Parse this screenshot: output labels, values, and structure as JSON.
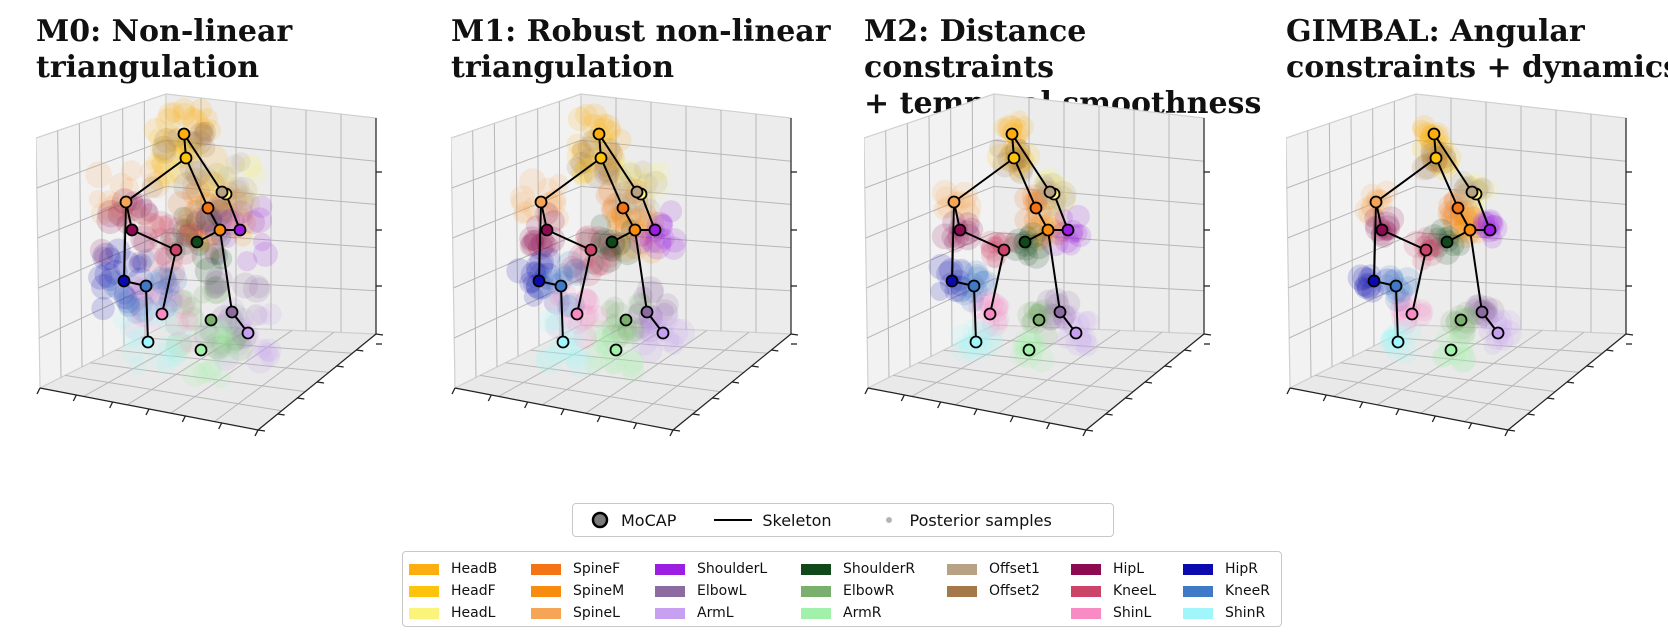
{
  "panels": [
    {
      "title": "M0: Non-linear\ntriangulation",
      "spread": 1.0
    },
    {
      "title": "M1: Robust non-linear\ntriangulation",
      "spread": 0.7
    },
    {
      "title": "M2: Distance constraints\n+ temporal smoothness",
      "spread": 0.4
    },
    {
      "title": "GIMBAL: Angular\nconstraints + dynamics",
      "spread": 0.35
    }
  ],
  "legend_markers": [
    {
      "label": "MoCAP",
      "icon": "mocap-marker-icon"
    },
    {
      "label": "Skeleton",
      "icon": "skeleton-line-icon"
    },
    {
      "label": "Posterior samples",
      "icon": "sample-dot-icon"
    }
  ],
  "keypoint_legend": [
    [
      {
        "label": "HeadB",
        "color": "#fcad0f"
      },
      {
        "label": "HeadF",
        "color": "#fcc40c"
      },
      {
        "label": "HeadL",
        "color": "#fbf47a"
      }
    ],
    [
      {
        "label": "SpineF",
        "color": "#f47415"
      },
      {
        "label": "SpineM",
        "color": "#f88c0f"
      },
      {
        "label": "SpineL",
        "color": "#f6a556"
      }
    ],
    [
      {
        "label": "ShoulderL",
        "color": "#9b1ee2"
      },
      {
        "label": "ElbowL",
        "color": "#8c6ba0"
      },
      {
        "label": "ArmL",
        "color": "#c7a0f2"
      }
    ],
    [
      {
        "label": "ShoulderR",
        "color": "#10481a"
      },
      {
        "label": "ElbowR",
        "color": "#7aaf6d"
      },
      {
        "label": "ArmR",
        "color": "#a1f1aa"
      }
    ],
    [
      {
        "label": "Offset1",
        "color": "#b7a286"
      },
      {
        "label": "Offset2",
        "color": "#a47849"
      }
    ],
    [
      {
        "label": "HipL",
        "color": "#8d0c51"
      },
      {
        "label": "KneeL",
        "color": "#cd4469"
      },
      {
        "label": "ShinL",
        "color": "#f98bc4"
      }
    ],
    [
      {
        "label": "HipR",
        "color": "#0a0aaf"
      },
      {
        "label": "KneeR",
        "color": "#4079c7"
      },
      {
        "label": "ShinR",
        "color": "#a1f6fb"
      }
    ]
  ],
  "chart_data": {
    "type": "scatter",
    "grid": true,
    "legend_placement": "bottom-center"
  }
}
